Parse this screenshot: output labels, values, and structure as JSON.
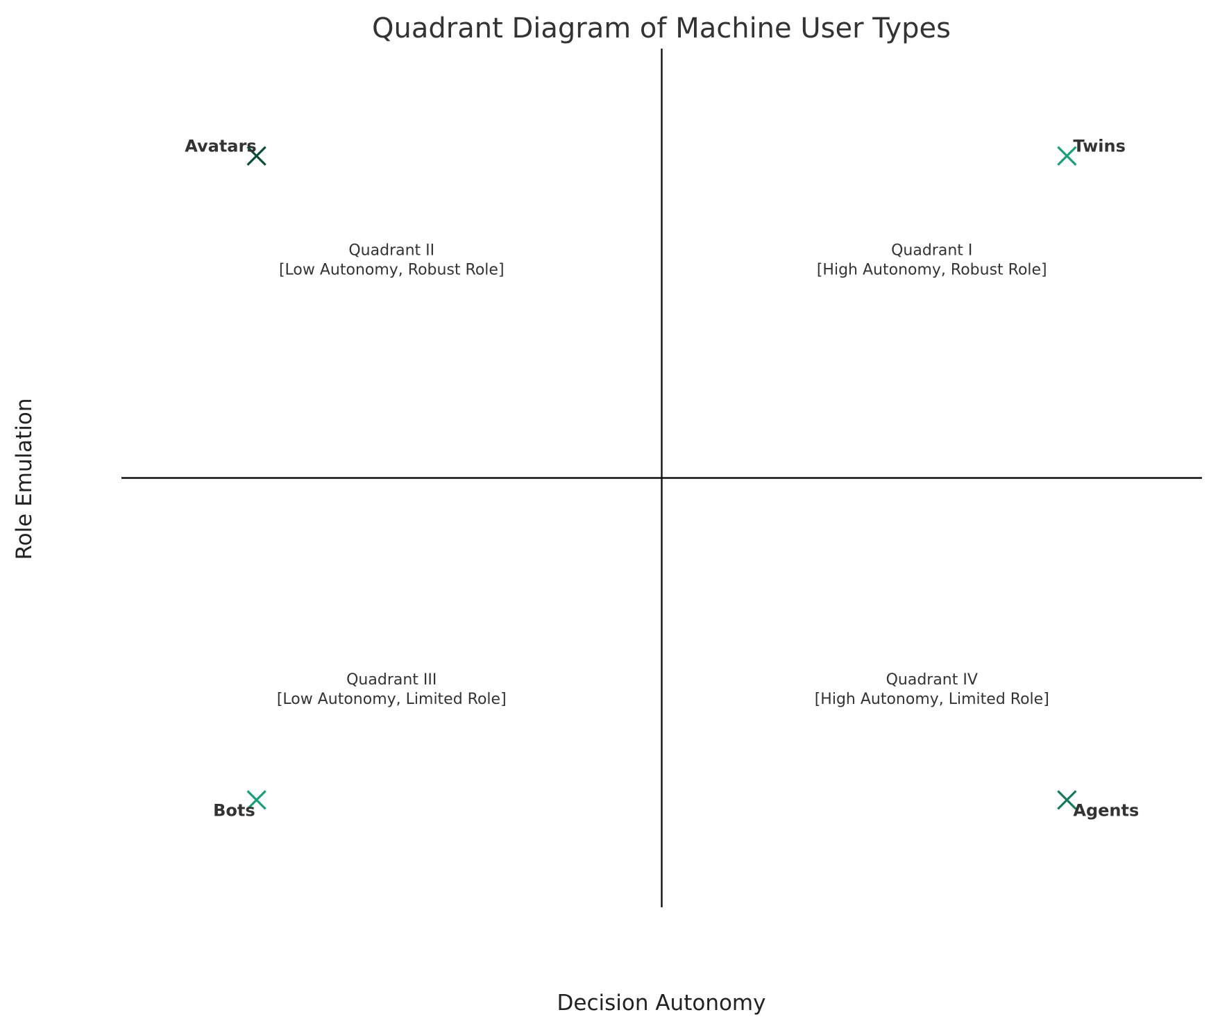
{
  "chart_data": {
    "type": "scatter",
    "title": "Quadrant Diagram of Machine User Types",
    "xlabel": "Decision Autonomy",
    "ylabel": "Role Emulation",
    "xlim": [
      -1,
      1
    ],
    "ylim": [
      -1,
      1
    ],
    "grid": false,
    "quadrant_lines": {
      "x": 0,
      "y": 0,
      "color": "#111111"
    },
    "quadrants": [
      {
        "name": "Quadrant I",
        "desc": "[High Autonomy, Robust Role]",
        "x": 0.5,
        "y": 0.5
      },
      {
        "name": "Quadrant II",
        "desc": "[Low Autonomy, Robust Role]",
        "x": -0.5,
        "y": 0.5
      },
      {
        "name": "Quadrant III",
        "desc": "[Low Autonomy, Limited Role]",
        "x": -0.5,
        "y": -0.5
      },
      {
        "name": "Quadrant IV",
        "desc": "[High Autonomy, Limited Role]",
        "x": 0.5,
        "y": -0.5
      }
    ],
    "points": [
      {
        "label": "Avatars",
        "x": -0.75,
        "y": 0.75,
        "color": "#0b4d3a",
        "label_pos": "upper-left"
      },
      {
        "label": "Twins",
        "x": 0.75,
        "y": 0.75,
        "color": "#1a9e7a",
        "label_pos": "upper-right"
      },
      {
        "label": "Bots",
        "x": -0.75,
        "y": -0.75,
        "color": "#1a9e7a",
        "label_pos": "lower-left"
      },
      {
        "label": "Agents",
        "x": 0.75,
        "y": -0.75,
        "color": "#167a5f",
        "label_pos": "lower-right"
      }
    ],
    "marker": "x"
  }
}
